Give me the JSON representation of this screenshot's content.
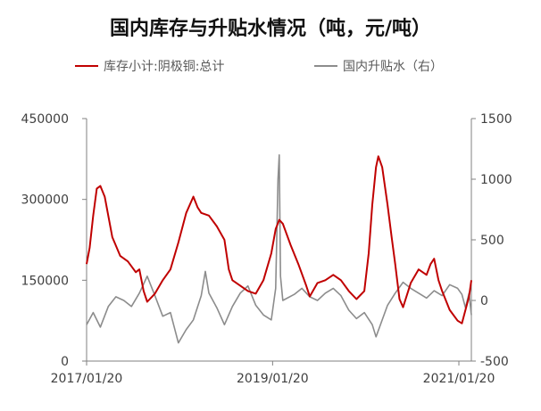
{
  "title": "国内库存与升贴水情况（吨，元/吨）",
  "colors": {
    "inventory": "#c00000",
    "basis": "#8c8c8c",
    "axis": "#808080"
  },
  "chart_data": {
    "type": "line",
    "title": "国内库存与升贴水情况（吨，元/吨）",
    "legend_position": "top",
    "grid": false,
    "x_ticks": [
      "2017/01/20",
      "2019/01/20",
      "2021/01/20"
    ],
    "x_range": [
      "2017/01/20",
      "2021/03/10"
    ],
    "y_left": {
      "range": [
        0,
        450000
      ],
      "ticks": [
        "0",
        "150000",
        "300000",
        "450000"
      ]
    },
    "y_right": {
      "range": [
        -500,
        1500
      ],
      "ticks": [
        "-500",
        "0",
        "500",
        "1000",
        "1500"
      ]
    },
    "series": [
      {
        "name": "库存小计:阴极铜:总计",
        "axis": "left",
        "points": [
          [
            "2017/01/20",
            180000
          ],
          [
            "2017/02/01",
            210000
          ],
          [
            "2017/02/15",
            270000
          ],
          [
            "2017/03/01",
            320000
          ],
          [
            "2017/03/15",
            325000
          ],
          [
            "2017/04/01",
            305000
          ],
          [
            "2017/05/01",
            230000
          ],
          [
            "2017/06/01",
            195000
          ],
          [
            "2017/07/01",
            185000
          ],
          [
            "2017/08/01",
            165000
          ],
          [
            "2017/08/15",
            170000
          ],
          [
            "2017/09/01",
            130000
          ],
          [
            "2017/09/15",
            110000
          ],
          [
            "2017/10/15",
            125000
          ],
          [
            "2017/11/15",
            150000
          ],
          [
            "2017/12/15",
            170000
          ],
          [
            "2018/01/15",
            220000
          ],
          [
            "2018/02/15",
            275000
          ],
          [
            "2018/03/15",
            305000
          ],
          [
            "2018/04/01",
            285000
          ],
          [
            "2018/04/15",
            275000
          ],
          [
            "2018/05/15",
            270000
          ],
          [
            "2018/06/15",
            250000
          ],
          [
            "2018/07/15",
            225000
          ],
          [
            "2018/08/01",
            170000
          ],
          [
            "2018/08/15",
            150000
          ],
          [
            "2018/09/15",
            140000
          ],
          [
            "2018/10/15",
            130000
          ],
          [
            "2018/11/15",
            125000
          ],
          [
            "2018/12/15",
            150000
          ],
          [
            "2019/01/15",
            200000
          ],
          [
            "2019/02/01",
            245000
          ],
          [
            "2019/02/15",
            262000
          ],
          [
            "2019/03/01",
            255000
          ],
          [
            "2019/04/01",
            215000
          ],
          [
            "2019/05/01",
            180000
          ],
          [
            "2019/06/01",
            140000
          ],
          [
            "2019/06/15",
            120000
          ],
          [
            "2019/07/15",
            145000
          ],
          [
            "2019/08/15",
            150000
          ],
          [
            "2019/09/15",
            160000
          ],
          [
            "2019/10/15",
            150000
          ],
          [
            "2019/11/15",
            130000
          ],
          [
            "2019/12/15",
            115000
          ],
          [
            "2020/01/15",
            130000
          ],
          [
            "2020/02/01",
            200000
          ],
          [
            "2020/02/15",
            290000
          ],
          [
            "2020/03/01",
            360000
          ],
          [
            "2020/03/10",
            380000
          ],
          [
            "2020/03/25",
            360000
          ],
          [
            "2020/04/15",
            290000
          ],
          [
            "2020/05/01",
            230000
          ],
          [
            "2020/05/15",
            180000
          ],
          [
            "2020/06/01",
            115000
          ],
          [
            "2020/06/15",
            100000
          ],
          [
            "2020/07/15",
            145000
          ],
          [
            "2020/08/15",
            170000
          ],
          [
            "2020/09/15",
            160000
          ],
          [
            "2020/10/01",
            180000
          ],
          [
            "2020/10/15",
            190000
          ],
          [
            "2020/11/01",
            150000
          ],
          [
            "2020/11/15",
            130000
          ],
          [
            "2020/12/15",
            95000
          ],
          [
            "2021/01/15",
            75000
          ],
          [
            "2021/02/01",
            70000
          ],
          [
            "2021/02/15",
            95000
          ],
          [
            "2021/03/01",
            120000
          ],
          [
            "2021/03/10",
            150000
          ]
        ]
      },
      {
        "name": "国内升贴水（右）",
        "axis": "right",
        "points": [
          [
            "2017/01/20",
            -200
          ],
          [
            "2017/02/15",
            -100
          ],
          [
            "2017/03/15",
            -220
          ],
          [
            "2017/04/15",
            -50
          ],
          [
            "2017/05/15",
            30
          ],
          [
            "2017/06/15",
            0
          ],
          [
            "2017/07/15",
            -50
          ],
          [
            "2017/08/15",
            60
          ],
          [
            "2017/09/15",
            200
          ],
          [
            "2017/10/15",
            40
          ],
          [
            "2017/11/15",
            -130
          ],
          [
            "2017/12/15",
            -100
          ],
          [
            "2018/01/15",
            -350
          ],
          [
            "2018/02/15",
            -240
          ],
          [
            "2018/03/15",
            -160
          ],
          [
            "2018/04/15",
            40
          ],
          [
            "2018/05/01",
            240
          ],
          [
            "2018/05/15",
            60
          ],
          [
            "2018/06/15",
            -60
          ],
          [
            "2018/07/15",
            -200
          ],
          [
            "2018/08/15",
            -50
          ],
          [
            "2018/09/15",
            60
          ],
          [
            "2018/10/15",
            120
          ],
          [
            "2018/11/15",
            -40
          ],
          [
            "2018/12/15",
            -120
          ],
          [
            "2019/01/15",
            -160
          ],
          [
            "2019/02/01",
            100
          ],
          [
            "2019/02/10",
            1000
          ],
          [
            "2019/02/15",
            1200
          ],
          [
            "2019/02/20",
            200
          ],
          [
            "2019/03/01",
            0
          ],
          [
            "2019/04/15",
            50
          ],
          [
            "2019/05/15",
            100
          ],
          [
            "2019/06/15",
            30
          ],
          [
            "2019/07/15",
            0
          ],
          [
            "2019/08/15",
            60
          ],
          [
            "2019/09/15",
            100
          ],
          [
            "2019/10/15",
            40
          ],
          [
            "2019/11/15",
            -80
          ],
          [
            "2019/12/15",
            -150
          ],
          [
            "2020/01/15",
            -100
          ],
          [
            "2020/02/15",
            -200
          ],
          [
            "2020/03/01",
            -300
          ],
          [
            "2020/03/15",
            -220
          ],
          [
            "2020/04/15",
            -40
          ],
          [
            "2020/05/15",
            60
          ],
          [
            "2020/06/15",
            150
          ],
          [
            "2020/07/15",
            100
          ],
          [
            "2020/08/15",
            60
          ],
          [
            "2020/09/15",
            20
          ],
          [
            "2020/10/15",
            80
          ],
          [
            "2020/11/15",
            40
          ],
          [
            "2020/12/15",
            130
          ],
          [
            "2021/01/15",
            100
          ],
          [
            "2021/02/01",
            50
          ],
          [
            "2021/02/15",
            -60
          ],
          [
            "2021/03/01",
            60
          ],
          [
            "2021/03/10",
            -120
          ]
        ]
      }
    ]
  }
}
